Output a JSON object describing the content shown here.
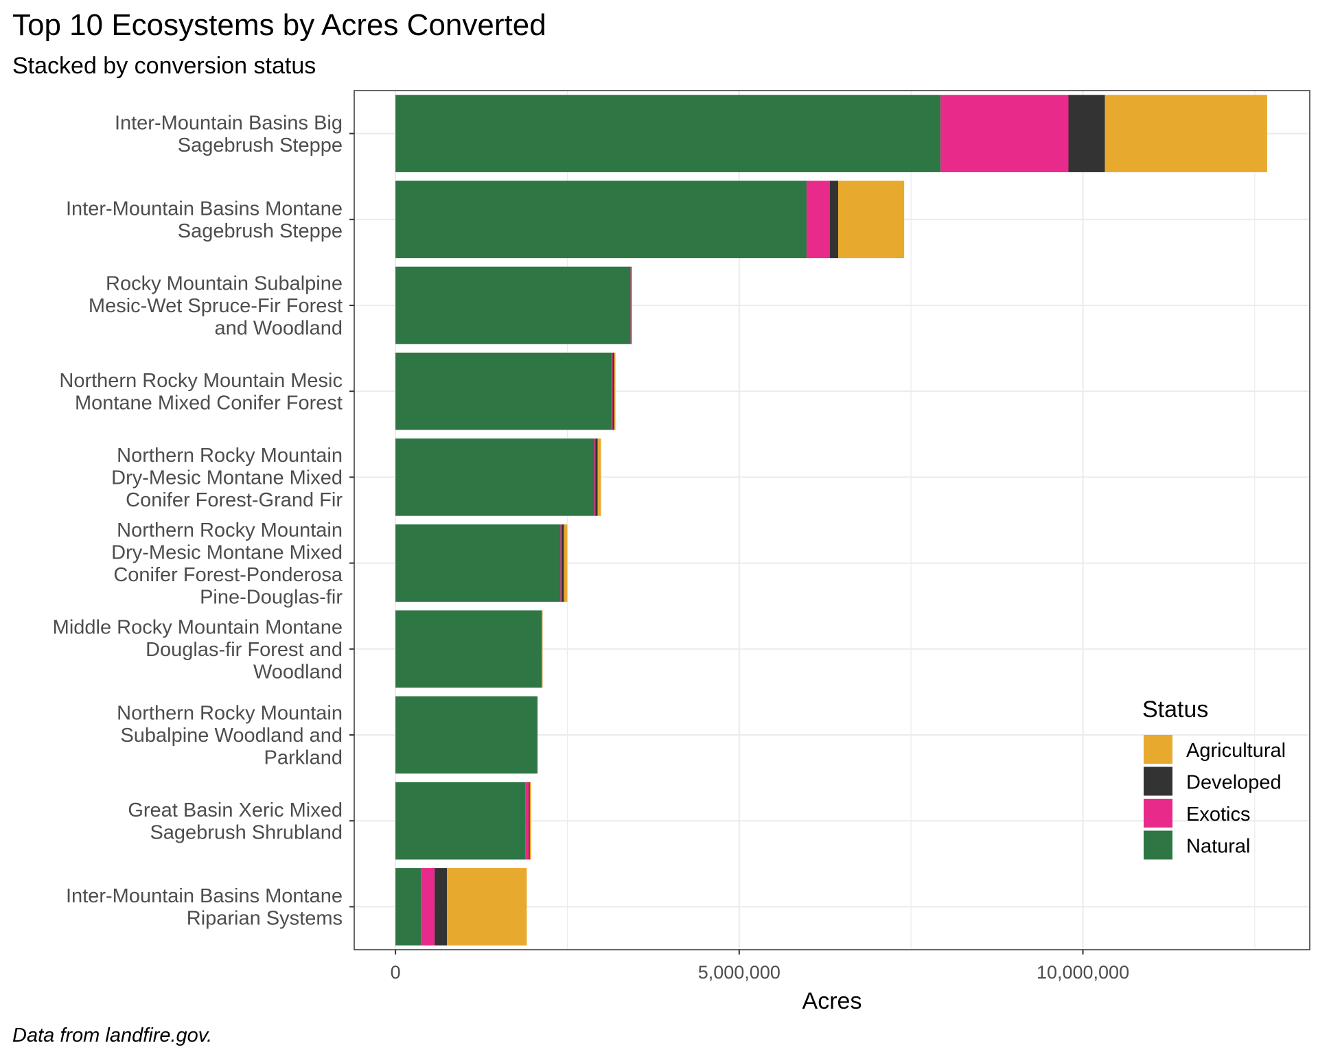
{
  "title": "Top 10 Ecosystems by Acres Converted",
  "subtitle": "Stacked by conversion status",
  "caption": "Data from landfire.gov.",
  "chart_data": {
    "type": "bar",
    "orientation": "horizontal",
    "stacked": true,
    "xlabel": "Acres",
    "ylabel": "",
    "xlim": [
      -600000,
      13300000
    ],
    "x_ticks": [
      {
        "value": 0,
        "label": "0"
      },
      {
        "value": 5000000,
        "label": "5,000,000"
      },
      {
        "value": 10000000,
        "label": "10,000,000"
      }
    ],
    "grid": true,
    "legend": {
      "title": "Status",
      "position": "right-bottom",
      "entries": [
        "Agricultural",
        "Developed",
        "Exotics",
        "Natural"
      ]
    },
    "colors": {
      "Natural": "#2e7644",
      "Exotics": "#e82a8a",
      "Developed": "#333333",
      "Agricultural": "#e8a92f"
    },
    "stack_order": [
      "Natural",
      "Exotics",
      "Developed",
      "Agricultural"
    ],
    "categories": [
      [
        "Inter-Mountain Basins Big",
        "Sagebrush Steppe"
      ],
      [
        "Inter-Mountain Basins Montane",
        "Sagebrush Steppe"
      ],
      [
        "Rocky Mountain Subalpine",
        "Mesic-Wet Spruce-Fir Forest",
        "and Woodland"
      ],
      [
        "Northern Rocky Mountain Mesic",
        "Montane Mixed Conifer Forest"
      ],
      [
        "Northern Rocky Mountain",
        "Dry-Mesic Montane Mixed",
        "Conifer Forest-Grand Fir"
      ],
      [
        "Northern Rocky Mountain",
        "Dry-Mesic Montane Mixed",
        "Conifer Forest-Ponderosa",
        "Pine-Douglas-fir"
      ],
      [
        "Middle Rocky Mountain Montane",
        "Douglas-fir Forest and",
        "Woodland"
      ],
      [
        "Northern Rocky Mountain",
        "Subalpine Woodland and",
        "Parkland"
      ],
      [
        "Great Basin Xeric Mixed",
        "Sagebrush Shrubland"
      ],
      [
        "Inter-Mountain Basins Montane",
        "Riparian Systems"
      ]
    ],
    "series": [
      {
        "name": "Natural",
        "values": [
          7930000,
          5980000,
          3420000,
          3140000,
          2890000,
          2400000,
          2120000,
          2060000,
          1890000,
          370000
        ]
      },
      {
        "name": "Exotics",
        "values": [
          1860000,
          340000,
          10000,
          20000,
          20000,
          20000,
          10000,
          5000,
          50000,
          200000
        ]
      },
      {
        "name": "Developed",
        "values": [
          530000,
          120000,
          5000,
          20000,
          30000,
          30000,
          5000,
          3000,
          15000,
          180000
        ]
      },
      {
        "name": "Agricultural",
        "values": [
          2360000,
          960000,
          5000,
          20000,
          50000,
          50000,
          5000,
          2000,
          20000,
          1160000
        ]
      }
    ]
  }
}
